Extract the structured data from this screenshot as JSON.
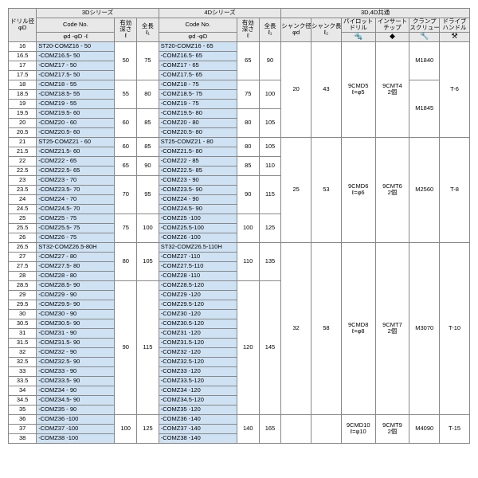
{
  "headers": {
    "drill": "ドリル径\nφD",
    "series3d": "3Dシリーズ",
    "series4d": "4Dシリーズ",
    "common": "3D,4D共通",
    "codeNo": "Code No.",
    "codeSub": "φd  -φD       -ℓ",
    "codeSub4": "φd  -φD",
    "depth": "有効\n深さ\nℓ",
    "length": "全長\nℓ₁",
    "shank1": "シャンク径\nφd",
    "shank2": "シャンク長\nℓ₂",
    "pilot": "パイロット\nドリル",
    "insert": "インサート\nチップ",
    "clamp": "クランプ\nスクリュー",
    "handle": "ドライブ\nハンドル"
  },
  "rows": [
    {
      "d": "16",
      "c3": "ST20-COMZ16  - 50",
      "g3": "A",
      "c4": "ST20-COMZ16  - 65",
      "g4": "A"
    },
    {
      "d": "16.5",
      "c3": "-COMZ16.5- 50",
      "g3": "A",
      "c4": "-COMZ16.5- 65",
      "g4": "A"
    },
    {
      "d": "17",
      "c3": "-COMZ17  - 50",
      "g3": "A",
      "c4": "-COMZ17  - 65",
      "g4": "A"
    },
    {
      "d": "17.5",
      "c3": "-COMZ17.5- 50",
      "g3": "A",
      "c4": "-COMZ17.5- 65",
      "g4": "A"
    },
    {
      "d": "18",
      "c3": "-COMZ18  - 55",
      "g3": "B",
      "c4": "-COMZ18  - 75",
      "g4": "B"
    },
    {
      "d": "18.5",
      "c3": "-COMZ18.5- 55",
      "g3": "B",
      "c4": "-COMZ18.5- 75",
      "g4": "B"
    },
    {
      "d": "19",
      "c3": "-COMZ19  - 55",
      "g3": "B",
      "c4": "-COMZ19  - 75",
      "g4": "B"
    },
    {
      "d": "19.5",
      "c3": "-COMZ19.5- 60",
      "g3": "C",
      "c4": "-COMZ19.5- 80",
      "g4": "C"
    },
    {
      "d": "20",
      "c3": "-COMZ20  - 60",
      "g3": "C",
      "c4": "-COMZ20  - 80",
      "g4": "C"
    },
    {
      "d": "20.5",
      "c3": "-COMZ20.5- 60",
      "g3": "C",
      "c4": "-COMZ20.5- 80",
      "g4": "C"
    },
    {
      "d": "21",
      "c3": "ST25-COMZ21  - 60",
      "g3": "D",
      "c4": "ST25-COMZ21  - 80",
      "g4": "D"
    },
    {
      "d": "21.5",
      "c3": "-COMZ21.5- 60",
      "g3": "D",
      "c4": "-COMZ21.5- 80",
      "g4": "D"
    },
    {
      "d": "22",
      "c3": "-COMZ22  - 65",
      "g3": "E",
      "c4": "-COMZ22  - 85",
      "g4": "E"
    },
    {
      "d": "22.5",
      "c3": "-COMZ22.5- 65",
      "g3": "E",
      "c4": "-COMZ22.5- 85",
      "g4": "E"
    },
    {
      "d": "23",
      "c3": "-COMZ23  - 70",
      "g3": "F",
      "c4": "-COMZ23  - 90",
      "g4": "F"
    },
    {
      "d": "23.5",
      "c3": "-COMZ23.5- 70",
      "g3": "F",
      "c4": "-COMZ23.5- 90",
      "g4": "F"
    },
    {
      "d": "24",
      "c3": "-COMZ24  - 70",
      "g3": "F",
      "c4": "-COMZ24  - 90",
      "g4": "F"
    },
    {
      "d": "24.5",
      "c3": "-COMZ24.5- 70",
      "g3": "F",
      "c4": "-COMZ24.5- 90",
      "g4": "F"
    },
    {
      "d": "25",
      "c3": "-COMZ25  - 75",
      "g3": "G",
      "c4": "-COMZ25  -100",
      "g4": "G"
    },
    {
      "d": "25.5",
      "c3": "-COMZ25.5- 75",
      "g3": "G",
      "c4": "-COMZ25.5-100",
      "g4": "G"
    },
    {
      "d": "26",
      "c3": "-COMZ26  - 75",
      "g3": "G",
      "c4": "-COMZ26  -100",
      "g4": "G"
    },
    {
      "d": "26.5",
      "c3": "ST32-COMZ26.5-80H",
      "g3": "H",
      "c4": "ST32-COMZ26.5-110H",
      "g4": "H"
    },
    {
      "d": "27",
      "c3": "-COMZ27  - 80",
      "g3": "H",
      "c4": "-COMZ27  -110",
      "g4": "H"
    },
    {
      "d": "27.5",
      "c3": "-COMZ27.5- 80",
      "g3": "H",
      "c4": "-COMZ27.5-110",
      "g4": "H"
    },
    {
      "d": "28",
      "c3": "-COMZ28  - 80",
      "g3": "H",
      "c4": "-COMZ28  -110",
      "g4": "H"
    },
    {
      "d": "28.5",
      "c3": "-COMZ28.5- 90",
      "g3": "I",
      "c4": "-COMZ28.5-120",
      "g4": "I"
    },
    {
      "d": "29",
      "c3": "-COMZ29  - 90",
      "g3": "I",
      "c4": "-COMZ29  -120",
      "g4": "I"
    },
    {
      "d": "29.5",
      "c3": "-COMZ29.5- 90",
      "g3": "I",
      "c4": "-COMZ29.5-120",
      "g4": "I"
    },
    {
      "d": "30",
      "c3": "-COMZ30  - 90",
      "g3": "I",
      "c4": "-COMZ30  -120",
      "g4": "I"
    },
    {
      "d": "30.5",
      "c3": "-COMZ30.5- 90",
      "g3": "I",
      "c4": "-COMZ30.5-120",
      "g4": "I"
    },
    {
      "d": "31",
      "c3": "-COMZ31  - 90",
      "g3": "I",
      "c4": "-COMZ31  -120",
      "g4": "I"
    },
    {
      "d": "31.5",
      "c3": "-COMZ31.5- 90",
      "g3": "I",
      "c4": "-COMZ31.5-120",
      "g4": "I"
    },
    {
      "d": "32",
      "c3": "-COMZ32  - 90",
      "g3": "I",
      "c4": "-COMZ32  -120",
      "g4": "I"
    },
    {
      "d": "32.5",
      "c3": "-COMZ32.5- 90",
      "g3": "I",
      "c4": "-COMZ32.5-120",
      "g4": "I"
    },
    {
      "d": "33",
      "c3": "-COMZ33  - 90",
      "g3": "I",
      "c4": "-COMZ33  -120",
      "g4": "I"
    },
    {
      "d": "33.5",
      "c3": "-COMZ33.5- 90",
      "g3": "I",
      "c4": "-COMZ33.5-120",
      "g4": "I"
    },
    {
      "d": "34",
      "c3": "-COMZ34  - 90",
      "g3": "I",
      "c4": "-COMZ34  -120",
      "g4": "I"
    },
    {
      "d": "34.5",
      "c3": "-COMZ34.5- 90",
      "g3": "I",
      "c4": "-COMZ34.5-120",
      "g4": "I"
    },
    {
      "d": "35",
      "c3": "-COMZ35  - 90",
      "g3": "I",
      "c4": "-COMZ35  -120",
      "g4": "I"
    },
    {
      "d": "36",
      "c3": "-COMZ36  -100",
      "g3": "J",
      "c4": "-COMZ36  -140",
      "g4": "J"
    },
    {
      "d": "37",
      "c3": "-COMZ37  -100",
      "g3": "J",
      "c4": "-COMZ37  -140",
      "g4": "J"
    },
    {
      "d": "38",
      "c3": "-COMZ38  -100",
      "g3": "J",
      "c4": "-COMZ38  -140",
      "g4": "J"
    }
  ],
  "g3": {
    "A": {
      "depth": "50",
      "len": "75",
      "span": 4
    },
    "B": {
      "depth": "55",
      "len": "80",
      "span": 3
    },
    "C": {
      "depth": "60",
      "len": "85",
      "span": 3
    },
    "D": {
      "depth": "60",
      "len": "85",
      "span": 2
    },
    "E": {
      "depth": "65",
      "len": "90",
      "span": 2
    },
    "F": {
      "depth": "70",
      "len": "95",
      "span": 4
    },
    "G": {
      "depth": "75",
      "len": "100",
      "span": 3
    },
    "H": {
      "depth": "80",
      "len": "105",
      "span": 4
    },
    "I": {
      "depth": "90",
      "len": "115",
      "span": 14
    },
    "J": {
      "depth": "100",
      "len": "125",
      "span": 3
    }
  },
  "g4": {
    "A": {
      "depth": "65",
      "len": "90",
      "span": 4
    },
    "B": {
      "depth": "75",
      "len": "100",
      "span": 3
    },
    "C": {
      "depth": "80",
      "len": "105",
      "span": 3
    },
    "D": {
      "depth": "80",
      "len": "105",
      "span": 2
    },
    "E": {
      "depth": "85",
      "len": "110",
      "span": 2
    },
    "F": {
      "depth": "90",
      "len": "115",
      "span": 4
    },
    "G": {
      "depth": "100",
      "len": "125",
      "span": 3
    },
    "H": {
      "depth": "110",
      "len": "135",
      "span": 4
    },
    "I": {
      "depth": "120",
      "len": "145",
      "span": 14
    },
    "J": {
      "depth": "140",
      "len": "165",
      "span": 3
    }
  },
  "shankGroups": [
    {
      "start": 0,
      "span": 10,
      "d": "20",
      "l": "43"
    },
    {
      "start": 10,
      "span": 11,
      "d": "25",
      "l": "53"
    },
    {
      "start": 21,
      "span": 18,
      "d": "32",
      "l": "58"
    },
    {
      "start": 39,
      "span": 3,
      "d": "",
      "l": ""
    }
  ],
  "toolGroups": [
    {
      "start": 0,
      "span": 10,
      "pilot": "9CMD5\nℓ=φ5",
      "insert": "9CMT4\n2個",
      "handle": "T-6"
    },
    {
      "start": 10,
      "span": 11,
      "pilot": "9CMD6\nℓ=φ6",
      "insert": "9CMT6\n2個",
      "handle": "T-8"
    },
    {
      "start": 21,
      "span": 18,
      "pilot": "9CMD8\nℓ=φ8",
      "insert": "9CMT7\n2個",
      "handle": "T-10"
    },
    {
      "start": 39,
      "span": 3,
      "pilot": "9CMD10\nℓ=φ10",
      "insert": "9CMT9\n2個",
      "handle": "T-15"
    }
  ],
  "clampGroups": [
    {
      "start": 0,
      "span": 4,
      "v": "M1840"
    },
    {
      "start": 4,
      "span": 6,
      "v": "M1845"
    },
    {
      "start": 10,
      "span": 11,
      "v": "M2560"
    },
    {
      "start": 21,
      "span": 18,
      "v": "M3070"
    },
    {
      "start": 39,
      "span": 3,
      "v": "M4090"
    }
  ]
}
